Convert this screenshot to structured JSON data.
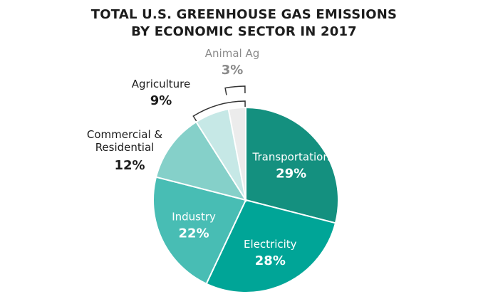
{
  "chart_data": {
    "type": "pie",
    "title": "TOTAL U.S. GREENHOUSE GAS EMISSIONS",
    "subtitle": "BY ECONOMIC SECTOR IN 2017",
    "slices": [
      {
        "label": "Transportation",
        "value": 29,
        "value_label": "29%",
        "color": "#14907f"
      },
      {
        "label": "Electricity",
        "value": 28,
        "value_label": "28%",
        "color": "#00a597"
      },
      {
        "label": "Industry",
        "value": 22,
        "value_label": "22%",
        "color": "#48bdb4"
      },
      {
        "label": "Commercial & Residential",
        "value": 12,
        "value_label": "12%",
        "color": "#85d0c9"
      },
      {
        "label": "Agriculture",
        "value": 9,
        "value_label": "9%",
        "color": "#c6e8e6",
        "sub_slice": {
          "label": "Animal Ag",
          "value": 3,
          "value_label": "3%",
          "color": "#ececec"
        }
      }
    ],
    "label_colors": {
      "inside": "#ffffff",
      "outside": "#1c1c1c",
      "muted": "#8a8a8a"
    },
    "bracket_color": "#333333"
  }
}
